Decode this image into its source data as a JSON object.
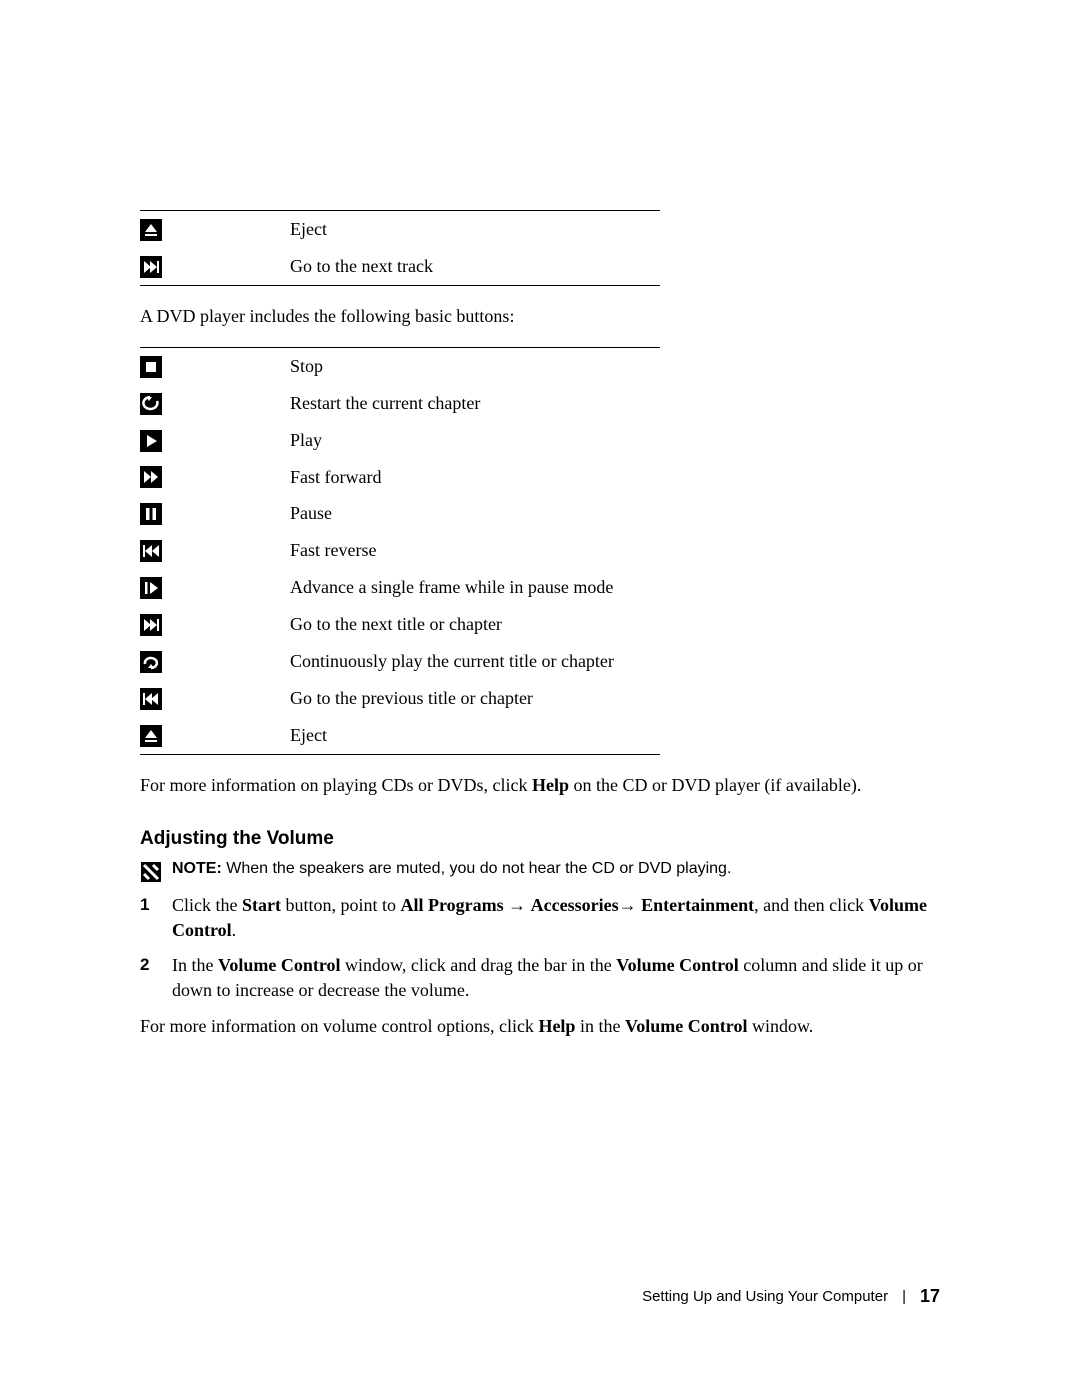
{
  "top_table": {
    "rows": [
      {
        "icon": "eject",
        "label": "Eject"
      },
      {
        "icon": "next-track",
        "label": "Go to the next track"
      }
    ]
  },
  "intro_dvd": "A DVD player includes the following basic buttons:",
  "dvd_table": {
    "rows": [
      {
        "icon": "stop",
        "label": "Stop"
      },
      {
        "icon": "restart",
        "label": "Restart the current chapter"
      },
      {
        "icon": "play",
        "label": "Play"
      },
      {
        "icon": "fast-forward",
        "label": "Fast forward"
      },
      {
        "icon": "pause",
        "label": "Pause"
      },
      {
        "icon": "fast-reverse",
        "label": "Fast reverse"
      },
      {
        "icon": "frame-advance",
        "label": "Advance a single frame while in pause mode"
      },
      {
        "icon": "next-chapter",
        "label": "Go to the next title or chapter"
      },
      {
        "icon": "repeat",
        "label": "Continuously play the current title or chapter"
      },
      {
        "icon": "prev-chapter",
        "label": "Go to the previous title or chapter"
      },
      {
        "icon": "eject",
        "label": "Eject"
      }
    ]
  },
  "more_info_pre": "For more information on playing CDs or DVDs, click ",
  "more_info_bold": "Help",
  "more_info_post": " on the CD or DVD player (if available).",
  "section_heading": "Adjusting the Volume",
  "note_bold": "NOTE:",
  "note_text": " When the speakers are muted, you do not hear the CD or DVD playing.",
  "step1": {
    "t1": "Click the ",
    "b1": "Start",
    "t2": " button, point to ",
    "b2": "All Programs",
    "t3": " → ",
    "b3": "Accessories",
    "t4": "→ ",
    "b4": "Entertainment",
    "t5": ", and then click ",
    "b5": "Volume Control",
    "t6": "."
  },
  "step2": {
    "t1": "In the ",
    "b1": "Volume Control",
    "t2": " window, click and drag the bar in the ",
    "b2": "Volume Control",
    "t3": " column and slide it up or down to increase or decrease the volume."
  },
  "closing": {
    "t1": "For more information on volume control options, click ",
    "b1": "Help",
    "t2": " in the ",
    "b2": "Volume Control",
    "t3": " window."
  },
  "footer_text": "Setting Up and Using Your Computer",
  "footer_sep": "|",
  "footer_page": "17",
  "icon_svg": {
    "eject": "<svg viewBox='0 0 22 22'><polygon points='11,5 17,13 5,13' fill='#fff'/><rect x='5' y='15' width='12' height='2' fill='#fff'/></svg>",
    "next-track": "<svg viewBox='0 0 22 22'><polygon points='4,5 11,11 4,17' fill='#fff'/><polygon points='10,5 17,11 10,17' fill='#fff'/><rect x='17' y='5' width='2' height='12' fill='#fff'/></svg>",
    "stop": "<svg viewBox='0 0 22 22'><rect x='6' y='6' width='10' height='10' fill='#fff'/></svg>",
    "restart": "<svg viewBox='0 0 22 22'><path d='M17 8 A7 6 0 1 1 10 4' fill='none' stroke='#fff' stroke-width='2.5'/><polygon points='6,4 12,4 9,8' fill='#fff'/></svg>",
    "play": "<svg viewBox='0 0 22 22'><polygon points='7,5 17,11 7,17' fill='#fff'/></svg>",
    "fast-forward": "<svg viewBox='0 0 22 22'><polygon points='4,5 11,11 4,17' fill='#fff'/><polygon points='11,5 18,11 11,17' fill='#fff'/></svg>",
    "pause": "<svg viewBox='0 0 22 22'><rect x='6' y='5' width='3.5' height='12' fill='#fff'/><rect x='12.5' y='5' width='3.5' height='12' fill='#fff'/></svg>",
    "fast-reverse": "<svg viewBox='0 0 22 22'><rect x='3' y='5' width='2' height='12' fill='#fff'/><polygon points='12,5 5,11 12,17' fill='#fff'/><polygon points='19,5 12,11 19,17' fill='#fff'/></svg>",
    "frame-advance": "<svg viewBox='0 0 22 22'><rect x='5' y='5' width='2.5' height='12' fill='#fff'/><polygon points='10,5 18,11 10,17' fill='#fff'/></svg>",
    "next-chapter": "<svg viewBox='0 0 22 22'><polygon points='4,5 11,11 4,17' fill='#fff'/><polygon points='10,5 17,11 10,17' fill='#fff'/><rect x='17' y='5' width='2' height='12' fill='#fff'/></svg>",
    "repeat": "<svg viewBox='0 0 22 22'><path d='M5 13 A6 5 0 1 1 11 17' fill='none' stroke='#fff' stroke-width='2.5'/><polygon points='8,17 14,17 11,13' fill='#fff'/></svg>",
    "prev-chapter": "<svg viewBox='0 0 22 22'><rect x='3' y='5' width='2' height='12' fill='#fff'/><polygon points='12,5 5,11 12,17' fill='#fff'/><polygon points='18,5 11,11 18,17' fill='#fff'/></svg>"
  }
}
